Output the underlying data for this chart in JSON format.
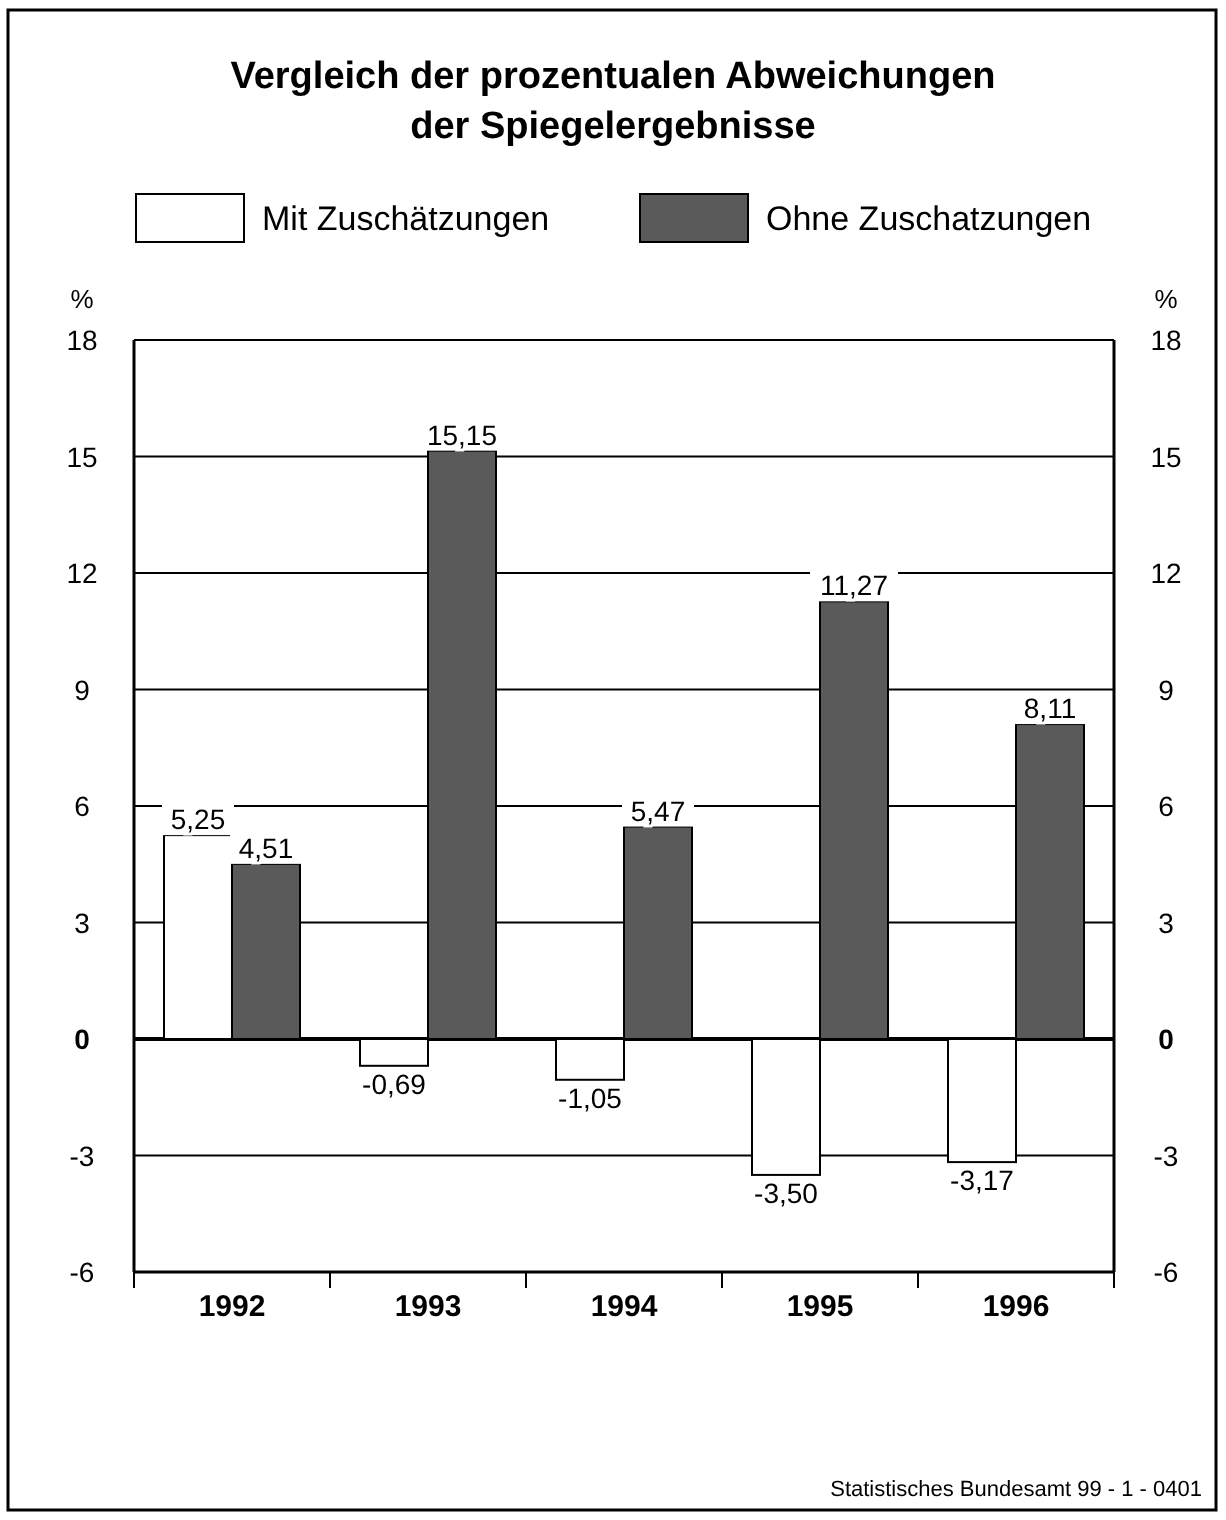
{
  "chart_data": {
    "type": "bar",
    "title": "Vergleich der prozentualen Abweichungen\nder Spiegelergebnisse",
    "categories": [
      "1992",
      "1993",
      "1994",
      "1995",
      "1996"
    ],
    "series": [
      {
        "name": "Mit Zuschätzungen",
        "color": "#ffffff",
        "values": [
          5.25,
          -0.69,
          -1.05,
          -3.5,
          -3.17
        ],
        "value_labels": [
          "5,25",
          "-0,69",
          "-1,05",
          "-3,50",
          "-3,17"
        ]
      },
      {
        "name": "Ohne Zuschatzungen",
        "color": "#5a5a5a",
        "values": [
          4.51,
          15.15,
          5.47,
          11.27,
          8.11
        ],
        "value_labels": [
          "4,51",
          "15,15",
          "5,47",
          "11,27",
          "8,11"
        ]
      }
    ],
    "ylabel": "%",
    "y2label": "%",
    "ylim": [
      -6,
      18
    ],
    "yticks": [
      -6,
      -3,
      0,
      3,
      6,
      9,
      12,
      15,
      18
    ],
    "y2lim": [
      -6,
      18
    ],
    "y2ticks": [
      -6,
      -3,
      0,
      3,
      6,
      9,
      12,
      15,
      18
    ],
    "grid": "y",
    "legend": "top",
    "annotations": [
      "Statistisches Bundesamt 99 - 1 - 0401"
    ]
  }
}
